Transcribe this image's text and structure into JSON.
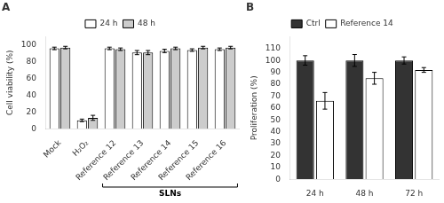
{
  "chart_data": [
    {
      "type": "bar",
      "title": "A",
      "categories": [
        "Mock",
        "H₂O₂",
        "Reference 12",
        "Reference 13",
        "Reference 14",
        "Reference 15",
        "Reference 16"
      ],
      "series": [
        {
          "name": "24 h",
          "color": "#ffffff",
          "values": [
            96,
            10,
            96,
            91,
            93,
            94,
            95
          ],
          "errors": [
            1.5,
            1.5,
            1.5,
            2.5,
            2.0,
            1.5,
            1.5
          ]
        },
        {
          "name": "48 h",
          "color": "#cccccc",
          "values": [
            97,
            13,
            95,
            91,
            96,
            97,
            97
          ],
          "errors": [
            1.5,
            3.0,
            1.5,
            2.5,
            1.5,
            1.5,
            1.5
          ]
        }
      ],
      "y_label": "Cell viability (%)",
      "ylim": [
        0,
        110
      ],
      "yticks": [
        0,
        20,
        40,
        60,
        80,
        100
      ],
      "annotations": [
        {
          "text": "SLNs",
          "from": "Reference 12",
          "to": "Reference 16"
        }
      ],
      "grid": false,
      "legend": "top"
    },
    {
      "type": "bar",
      "title": "B",
      "categories": [
        "24 h",
        "48 h",
        "72 h"
      ],
      "series": [
        {
          "name": "Ctrl",
          "color": "#333333",
          "values": [
            100,
            100,
            100
          ],
          "errors": [
            4,
            5,
            3
          ]
        },
        {
          "name": "Reference 14",
          "color": "#ffffff",
          "values": [
            66,
            85,
            92
          ],
          "errors": [
            7,
            5,
            2
          ]
        }
      ],
      "y_label": "Proliferation (%)",
      "ylim": [
        0,
        120
      ],
      "yticks": [
        0,
        10,
        20,
        30,
        40,
        50,
        60,
        70,
        80,
        90,
        100,
        110
      ],
      "grid": false,
      "legend": "top"
    }
  ]
}
